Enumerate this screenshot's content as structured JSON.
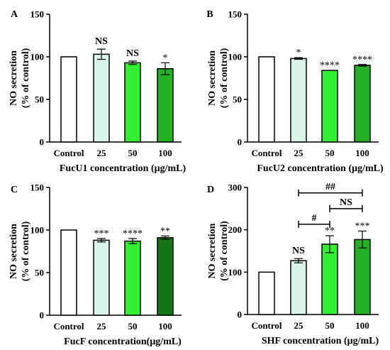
{
  "chart_data": [
    {
      "panel": "A",
      "type": "bar",
      "categories": [
        "Control",
        "25",
        "50",
        "100"
      ],
      "values": [
        100,
        103,
        93,
        86
      ],
      "errors": [
        0,
        6,
        2,
        7
      ],
      "colors": [
        "#ffffff",
        "#d8f5e8",
        "#33ee33",
        "#23b023"
      ],
      "annotations": [
        "",
        "NS",
        "NS",
        "*"
      ],
      "ylim": [
        0,
        150
      ],
      "yticks": [
        0,
        50,
        100,
        150
      ],
      "ylabel": [
        "NO secretion",
        "(% of control)"
      ],
      "xlabel": "FucU1 concentration (μg/mL)",
      "brackets": []
    },
    {
      "panel": "B",
      "type": "bar",
      "categories": [
        "Control",
        "25",
        "50",
        "100"
      ],
      "values": [
        100,
        98,
        84,
        90
      ],
      "errors": [
        0,
        1,
        0,
        1
      ],
      "colors": [
        "#ffffff",
        "#d8f5e8",
        "#33ee33",
        "#23b023"
      ],
      "annotations": [
        "",
        "*",
        "****",
        "****"
      ],
      "ylim": [
        0,
        150
      ],
      "yticks": [
        0,
        50,
        100,
        150
      ],
      "ylabel": [
        "NO secretion",
        "(% of control)"
      ],
      "xlabel": "FucU2 concentration (μg/mL)",
      "brackets": []
    },
    {
      "panel": "C",
      "type": "bar",
      "categories": [
        "Control",
        "25",
        "50",
        "100"
      ],
      "values": [
        100,
        88,
        87,
        91
      ],
      "errors": [
        0,
        2,
        3,
        2
      ],
      "colors": [
        "#ffffff",
        "#d8f5e8",
        "#33ee33",
        "#137513"
      ],
      "annotations": [
        "",
        "***",
        "****",
        "**"
      ],
      "ylim": [
        0,
        150
      ],
      "yticks": [
        0,
        50,
        100,
        150
      ],
      "ylabel": [
        "NO secretion",
        "(% of control)"
      ],
      "xlabel": "FucF concentration(μg/mL)",
      "brackets": []
    },
    {
      "panel": "D",
      "type": "bar",
      "categories": [
        "Control",
        "25",
        "50",
        "100"
      ],
      "values": [
        100,
        127,
        166,
        177
      ],
      "errors": [
        0,
        5,
        20,
        20
      ],
      "colors": [
        "#ffffff",
        "#d8f5e8",
        "#33ee33",
        "#23b023"
      ],
      "annotations": [
        "",
        "NS",
        "**",
        "***"
      ],
      "ylim": [
        0,
        300
      ],
      "yticks": [
        0,
        100,
        200,
        300
      ],
      "ylabel": [
        "NO secretion",
        "(% of control)"
      ],
      "xlabel": "SHF concentration (μg/mL)",
      "brackets": [
        {
          "from": 1,
          "to": 3,
          "level": 287,
          "label": "##"
        },
        {
          "from": 2,
          "to": 3,
          "level": 250,
          "label": "NS"
        },
        {
          "from": 1,
          "to": 2,
          "level": 213,
          "label": "#"
        }
      ]
    }
  ]
}
